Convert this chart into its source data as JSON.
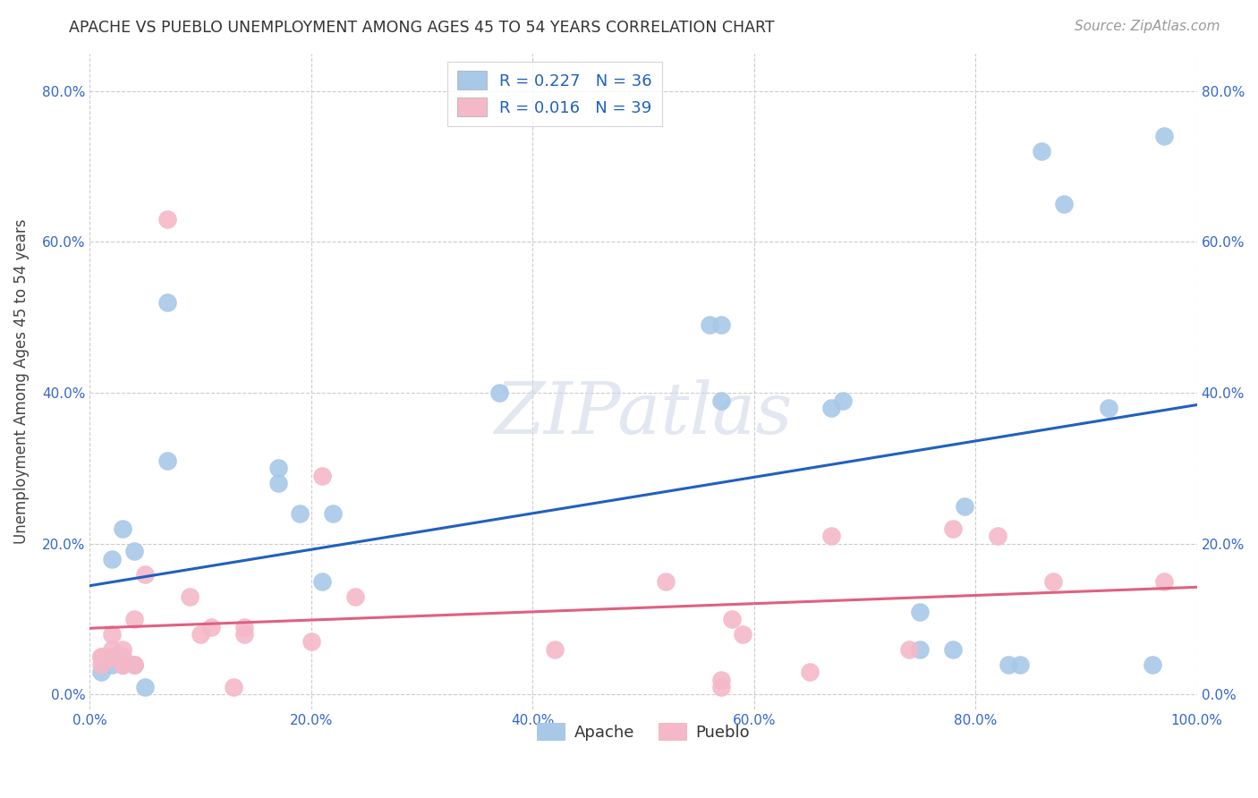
{
  "title": "APACHE VS PUEBLO UNEMPLOYMENT AMONG AGES 45 TO 54 YEARS CORRELATION CHART",
  "source": "Source: ZipAtlas.com",
  "ylabel": "Unemployment Among Ages 45 to 54 years",
  "xlim": [
    0,
    1.0
  ],
  "ylim": [
    -0.02,
    0.85
  ],
  "xticks": [
    0.0,
    0.2,
    0.4,
    0.6,
    0.8,
    1.0
  ],
  "xtick_labels": [
    "0.0%",
    "20.0%",
    "40.0%",
    "60.0%",
    "80.0%",
    "100.0%"
  ],
  "yticks": [
    0.0,
    0.2,
    0.4,
    0.6,
    0.8
  ],
  "ytick_labels": [
    "0.0%",
    "20.0%",
    "40.0%",
    "60.0%",
    "80.0%"
  ],
  "right_yticks": [
    0.0,
    0.2,
    0.4,
    0.6,
    0.8
  ],
  "right_ytick_labels": [
    "0.0%",
    "20.0%",
    "40.0%",
    "60.0%",
    "80.0%"
  ],
  "apache_R": 0.227,
  "apache_N": 36,
  "pueblo_R": 0.016,
  "pueblo_N": 39,
  "apache_color": "#a8c8e8",
  "pueblo_color": "#f4b8c8",
  "apache_line_color": "#2060c0",
  "pueblo_line_color": "#e06080",
  "tick_color": "#3366cc",
  "label_color": "#444444",
  "background_color": "#ffffff",
  "grid_color": "#cccccc",
  "watermark_text": "ZIPatlas",
  "apache_x": [
    0.01,
    0.02,
    0.02,
    0.02,
    0.02,
    0.03,
    0.03,
    0.03,
    0.03,
    0.04,
    0.04,
    0.05,
    0.07,
    0.07,
    0.17,
    0.17,
    0.19,
    0.21,
    0.22,
    0.37,
    0.56,
    0.57,
    0.57,
    0.67,
    0.68,
    0.75,
    0.75,
    0.78,
    0.79,
    0.83,
    0.84,
    0.86,
    0.88,
    0.92,
    0.96,
    0.97
  ],
  "apache_y": [
    0.03,
    0.04,
    0.05,
    0.05,
    0.18,
    0.04,
    0.04,
    0.04,
    0.22,
    0.04,
    0.19,
    0.01,
    0.52,
    0.31,
    0.28,
    0.3,
    0.24,
    0.15,
    0.24,
    0.4,
    0.49,
    0.49,
    0.39,
    0.38,
    0.39,
    0.11,
    0.06,
    0.06,
    0.25,
    0.04,
    0.04,
    0.72,
    0.65,
    0.38,
    0.04,
    0.74
  ],
  "pueblo_x": [
    0.01,
    0.01,
    0.01,
    0.02,
    0.02,
    0.02,
    0.02,
    0.02,
    0.03,
    0.03,
    0.03,
    0.03,
    0.04,
    0.04,
    0.04,
    0.05,
    0.07,
    0.09,
    0.1,
    0.11,
    0.13,
    0.14,
    0.14,
    0.2,
    0.21,
    0.24,
    0.42,
    0.52,
    0.57,
    0.57,
    0.58,
    0.59,
    0.65,
    0.67,
    0.74,
    0.78,
    0.82,
    0.87,
    0.97
  ],
  "pueblo_y": [
    0.04,
    0.05,
    0.05,
    0.05,
    0.05,
    0.05,
    0.06,
    0.08,
    0.04,
    0.04,
    0.05,
    0.06,
    0.04,
    0.04,
    0.1,
    0.16,
    0.63,
    0.13,
    0.08,
    0.09,
    0.01,
    0.08,
    0.09,
    0.07,
    0.29,
    0.13,
    0.06,
    0.15,
    0.01,
    0.02,
    0.1,
    0.08,
    0.03,
    0.21,
    0.06,
    0.22,
    0.21,
    0.15,
    0.15
  ]
}
